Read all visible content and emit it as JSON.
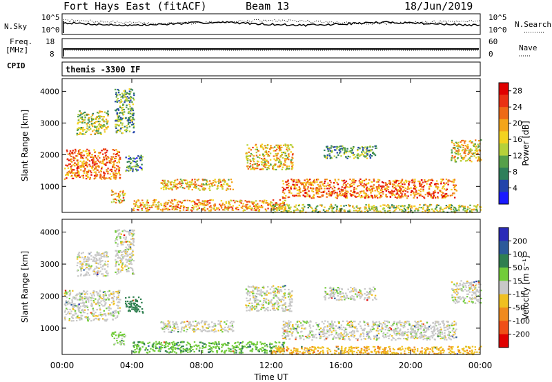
{
  "header": {
    "station": "Fort Hays East (fitACF)",
    "beam": "Beam 13",
    "date": "18/Jun/2019"
  },
  "panels": {
    "nsky_label": "N.Sky",
    "nsearch_label": "N.Search",
    "freq_label_line1": "Freq.",
    "freq_label_line2": "[MHz]",
    "nave_label": "Nave",
    "cpid_label": "CPID",
    "cpid_value": "themis -3300 IF",
    "noise_left_ticks": [
      "10^5",
      "10^0"
    ],
    "noise_right_ticks": [
      "10^5",
      "10^0"
    ],
    "freq_left_ticks": [
      "18",
      "8"
    ],
    "nave_right_ticks": [
      "60",
      "0"
    ]
  },
  "chart_data": [
    {
      "type": "heatmap",
      "title": "",
      "xlabel": "Time UT",
      "ylabel": "Slant Range [km]",
      "x_ticks": [
        "00:00",
        "04:00",
        "08:00",
        "12:00",
        "16:00",
        "20:00",
        "00:00"
      ],
      "x_range_hours": [
        0,
        24
      ],
      "ylim": [
        180,
        4400
      ],
      "y_ticks": [
        1000,
        2000,
        3000,
        4000
      ],
      "colorbar": {
        "label": "Power [dB]",
        "ticks": [
          4,
          8,
          12,
          16,
          20,
          24,
          28
        ],
        "range": [
          0,
          30
        ],
        "colors": [
          "#1a1aff",
          "#2244aa",
          "#2e7f5a",
          "#56a04a",
          "#b6d13a",
          "#f3d21f",
          "#f3a51a",
          "#ee6a16",
          "#ea3113",
          "#e00000"
        ]
      },
      "echo_regions": [
        {
          "t0": 0.1,
          "t1": 3.3,
          "r0": 1250,
          "r1": 2200,
          "level": 22
        },
        {
          "t0": 0.8,
          "t1": 2.6,
          "r0": 2650,
          "r1": 3400,
          "level": 14
        },
        {
          "t0": 3.0,
          "t1": 4.1,
          "r0": 2700,
          "r1": 4100,
          "level": 10
        },
        {
          "t0": 3.6,
          "t1": 4.6,
          "r0": 1500,
          "r1": 2000,
          "level": 8
        },
        {
          "t0": 2.8,
          "t1": 3.6,
          "r0": 500,
          "r1": 900,
          "level": 18
        },
        {
          "t0": 5.6,
          "t1": 9.8,
          "r0": 900,
          "r1": 1250,
          "level": 18
        },
        {
          "t0": 4.0,
          "t1": 12.8,
          "r0": 250,
          "r1": 600,
          "level": 20
        },
        {
          "t0": 10.5,
          "t1": 13.2,
          "r0": 1550,
          "r1": 2350,
          "level": 18
        },
        {
          "t0": 12.6,
          "t1": 22.6,
          "r0": 650,
          "r1": 1250,
          "level": 22
        },
        {
          "t0": 15.0,
          "t1": 18.0,
          "r0": 1900,
          "r1": 2300,
          "level": 10
        },
        {
          "t0": 22.3,
          "t1": 24.0,
          "r0": 1800,
          "r1": 2500,
          "level": 16
        },
        {
          "t0": 12.0,
          "t1": 24.0,
          "r0": 200,
          "r1": 450,
          "level": 14
        }
      ]
    },
    {
      "type": "heatmap",
      "title": "",
      "xlabel": "Time UT",
      "ylabel": "Slant Range [km]",
      "x_ticks": [
        "00:00",
        "04:00",
        "08:00",
        "12:00",
        "16:00",
        "20:00",
        "00:00"
      ],
      "x_range_hours": [
        0,
        24
      ],
      "ylim": [
        180,
        4400
      ],
      "y_ticks": [
        1000,
        2000,
        3000,
        4000
      ],
      "colorbar": {
        "label": "Velocity [m s⁻¹]",
        "ticks": [
          200,
          100,
          50,
          15,
          -15,
          -50,
          -100,
          -200
        ],
        "colors": [
          "#2a2ab8",
          "#2c5a9a",
          "#2f7f4f",
          "#72cc3a",
          "#c8c8c8",
          "#f0c020",
          "#f08a1e",
          "#ef4f17",
          "#e00000"
        ]
      },
      "echo_regions": [
        {
          "t0": 0.1,
          "t1": 3.3,
          "r0": 1250,
          "r1": 2200,
          "level": 0
        },
        {
          "t0": 0.8,
          "t1": 2.6,
          "r0": 2650,
          "r1": 3400,
          "level": 0
        },
        {
          "t0": 3.0,
          "t1": 4.1,
          "r0": 2700,
          "r1": 4100,
          "level": 0
        },
        {
          "t0": 3.6,
          "t1": 4.6,
          "r0": 1500,
          "r1": 2000,
          "level": 70
        },
        {
          "t0": 2.8,
          "t1": 3.6,
          "r0": 500,
          "r1": 900,
          "level": 20
        },
        {
          "t0": 5.6,
          "t1": 9.8,
          "r0": 900,
          "r1": 1250,
          "level": 0
        },
        {
          "t0": 4.0,
          "t1": 12.8,
          "r0": 250,
          "r1": 600,
          "level": 40
        },
        {
          "t0": 10.5,
          "t1": 13.2,
          "r0": 1550,
          "r1": 2350,
          "level": 0
        },
        {
          "t0": 12.6,
          "t1": 22.6,
          "r0": 650,
          "r1": 1250,
          "level": 0
        },
        {
          "t0": 15.0,
          "t1": 18.0,
          "r0": 1900,
          "r1": 2300,
          "level": 0
        },
        {
          "t0": 22.3,
          "t1": 24.0,
          "r0": 1800,
          "r1": 2500,
          "level": 0
        },
        {
          "t0": 12.0,
          "t1": 24.0,
          "r0": 200,
          "r1": 450,
          "level": -40
        }
      ]
    }
  ]
}
